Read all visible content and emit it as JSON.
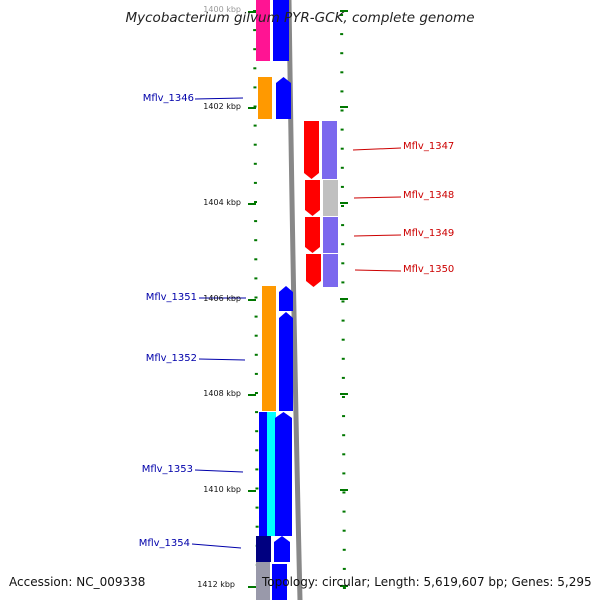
{
  "title": "Mycobacterium gilvum PYR-GCK, complete genome",
  "ticks": [
    "1400 kbp",
    "1402 kbp",
    "1404 kbp",
    "1406 kbp",
    "1408 kbp",
    "1410 kbp",
    "1412 kbp"
  ],
  "genes_left": [
    "Mflv_1346",
    "Mflv_1351",
    "Mflv_1352",
    "Mflv_1353",
    "Mflv_1354"
  ],
  "genes_right": [
    "Mflv_1347",
    "Mflv_1348",
    "Mflv_1349",
    "Mflv_1350"
  ],
  "footer": {
    "accession": "Accession: NC_009338",
    "topology": "Topology: circular; Length: 5,619,607 bp; Genes: 5,295"
  },
  "colors": {
    "forward_strand": "#0000ff",
    "reverse_strand": "#ff0000",
    "cog_orange": "#ff9900",
    "cog_pink": "#ff1493",
    "cog_cyan": "#00ffff",
    "cog_navy": "#000080",
    "cog_lavender": "#7b68ee",
    "cog_gray": "#c0c0c0",
    "backbone": "#888888",
    "tick": "#007700"
  }
}
